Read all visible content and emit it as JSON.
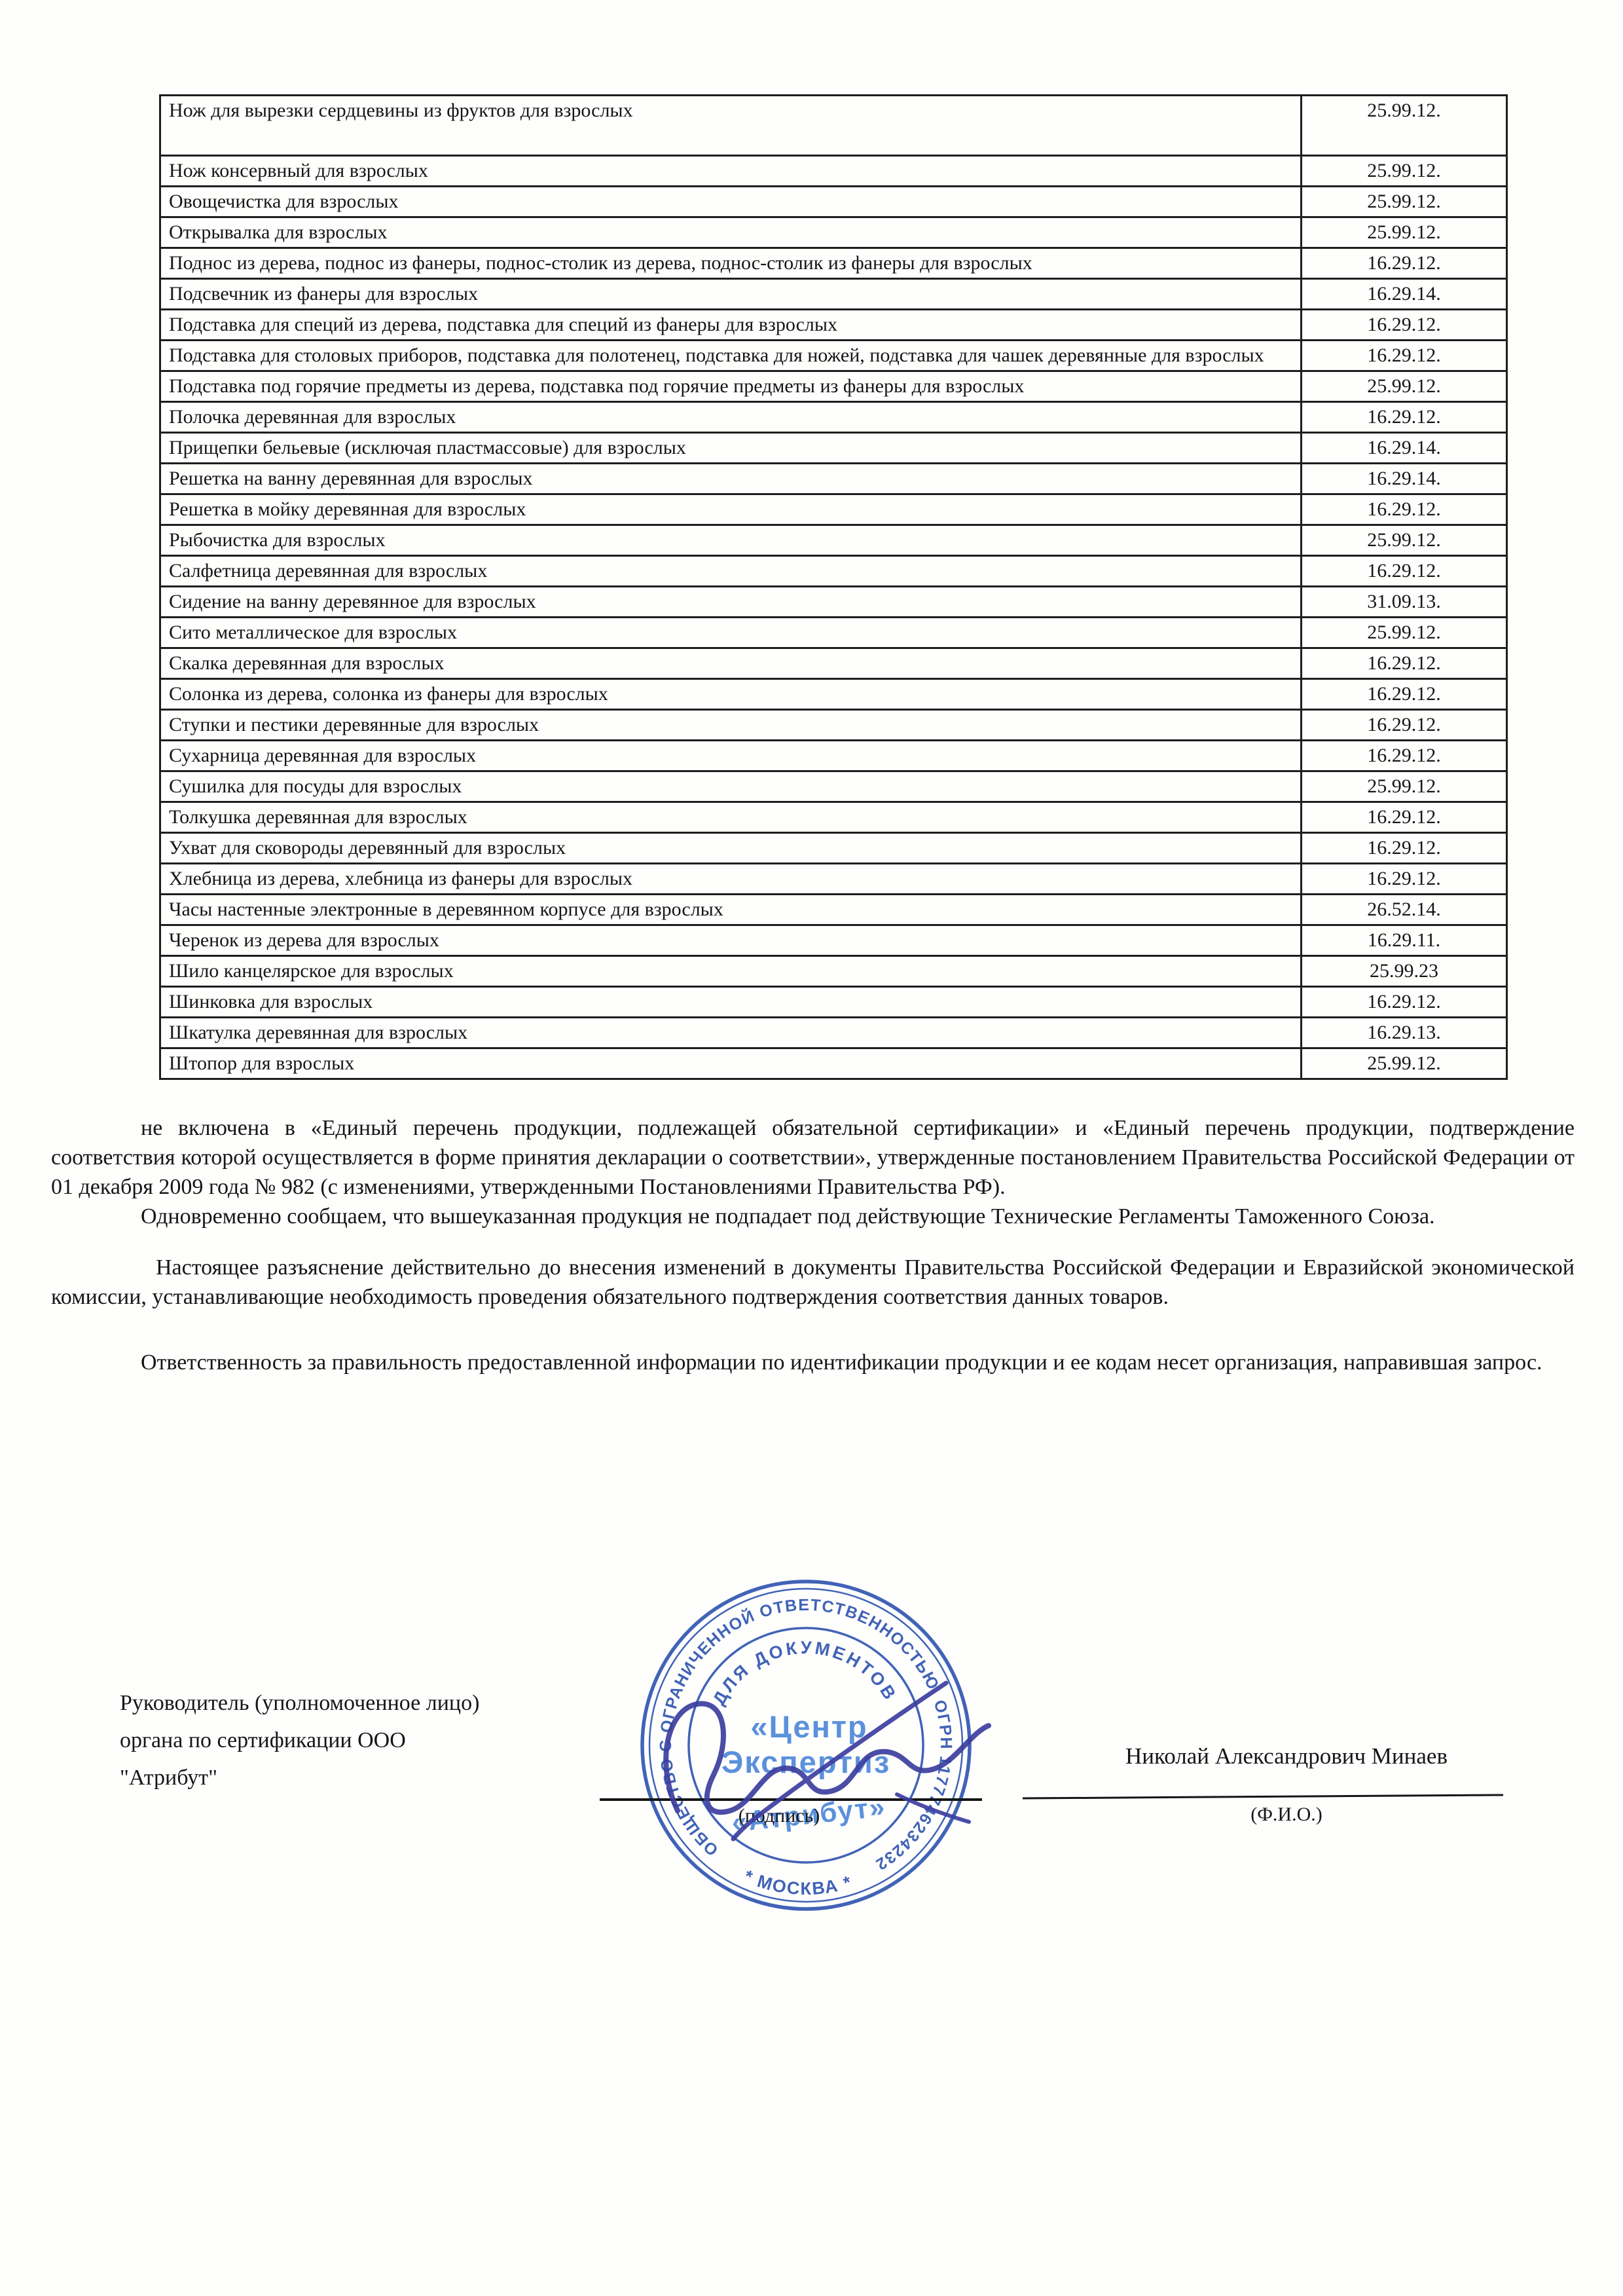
{
  "document": {
    "table": {
      "rows": [
        {
          "name": "Нож для вырезки сердцевины из фруктов для взрослых",
          "code": "25.99.12."
        },
        {
          "name": "Нож консервный для взрослых",
          "code": "25.99.12."
        },
        {
          "name": "Овощечистка для взрослых",
          "code": "25.99.12."
        },
        {
          "name": "Открывалка для взрослых",
          "code": "25.99.12."
        },
        {
          "name": "Поднос из дерева, поднос из фанеры, поднос-столик из дерева, поднос-столик из фанеры для взрослых",
          "code": "16.29.12."
        },
        {
          "name": "Подсвечник из фанеры для взрослых",
          "code": "16.29.14."
        },
        {
          "name": "Подставка для специй из дерева, подставка для специй из фанеры для взрослых",
          "code": "16.29.12."
        },
        {
          "name": "Подставка для столовых приборов, подставка для полотенец, подставка для ножей, подставка для чашек деревянные для взрослых",
          "code": "16.29.12."
        },
        {
          "name": "Подставка под горячие предметы из дерева, подставка под горячие предметы из фанеры для взрослых",
          "code": "25.99.12."
        },
        {
          "name": "Полочка деревянная для взрослых",
          "code": "16.29.12."
        },
        {
          "name": "Прищепки бельевые (исключая пластмассовые) для взрослых",
          "code": "16.29.14."
        },
        {
          "name": "Решетка на ванну деревянная для взрослых",
          "code": "16.29.14."
        },
        {
          "name": "Решетка в мойку деревянная для взрослых",
          "code": "16.29.12."
        },
        {
          "name": "Рыбочистка для взрослых",
          "code": "25.99.12."
        },
        {
          "name": "Салфетница деревянная для взрослых",
          "code": "16.29.12."
        },
        {
          "name": "Сидение на ванну деревянное для взрослых",
          "code": "31.09.13."
        },
        {
          "name": "Сито металлическое для взрослых",
          "code": "25.99.12."
        },
        {
          "name": "Скалка деревянная для взрослых",
          "code": "16.29.12."
        },
        {
          "name": "Солонка из дерева, солонка из фанеры для взрослых",
          "code": "16.29.12."
        },
        {
          "name": "Ступки и пестики деревянные для взрослых",
          "code": "16.29.12."
        },
        {
          "name": "Сухарница деревянная для взрослых",
          "code": "16.29.12."
        },
        {
          "name": "Сушилка для посуды для взрослых",
          "code": "25.99.12."
        },
        {
          "name": "Толкушка деревянная для взрослых",
          "code": "16.29.12."
        },
        {
          "name": "Ухват для сковороды деревянный для взрослых",
          "code": "16.29.12."
        },
        {
          "name": "Хлебница из дерева, хлебница из фанеры для взрослых",
          "code": "16.29.12."
        },
        {
          "name": "Часы настенные электронные в деревянном корпусе для взрослых",
          "code": "26.52.14."
        },
        {
          "name": "Черенок из дерева для взрослых",
          "code": "16.29.11."
        },
        {
          "name": "Шило канцелярское для взрослых",
          "code": "25.99.23"
        },
        {
          "name": "Шинковка для взрослых",
          "code": "16.29.12."
        },
        {
          "name": "Шкатулка деревянная для взрослых",
          "code": "16.29.13."
        },
        {
          "name": "Штопор для взрослых",
          "code": "25.99.12."
        }
      ]
    },
    "paragraphs": [
      "не включена в «Единый перечень продукции, подлежащей обязательной сертификации» и «Единый перечень продукции, подтверждение соответствия которой осуществляется в форме принятия декларации о соответствии», утвержденные постановлением Правительства Российской Федерации от 01 декабря 2009 года № 982 (с изменениями, утвержденными Постановлениями Правительства РФ).",
      "Одновременно сообщаем, что вышеуказанная продукция не подпадает под действующие Технические Регламенты Таможенного Союза.",
      "Настоящее разъяснение действительно до внесения изменений в документы Правительства Российской Федерации и Евразийской экономической комиссии, устанавливающие необходимость проведения обязательного подтверждения соответствия данных товаров.",
      "Ответственность за правильность предоставленной информации по идентификации продукции и ее кодам несет организация, направившая запрос."
    ],
    "signature_block": {
      "left_lines": [
        "Руководитель (уполномоченное лицо)",
        "органа по сертификации ООО",
        "\"Атрибут\""
      ],
      "sign_caption": "(подпись)",
      "fio_caption": "(Ф.И.О.)",
      "signer_name": "Николай Александрович Минаев"
    },
    "stamp": {
      "ring_text": "ОБЩЕСТВО С ОГРАНИЧЕННОЙ ОТВЕТСТВЕННОСТЬЮ  ОГРН 1177746234232",
      "bottom_text": "* МОСКВА *",
      "inner_arc_text": "ДЛЯ ДОКУМЕНТОВ",
      "center_line1": "«Центр",
      "center_line2": "Экспертиз",
      "center_line3": "«Атрибут»",
      "colors": {
        "ring_blue": "#2d53b0",
        "center_blue": "#4a86d8",
        "signature_ink": "#3c3f9f"
      }
    }
  }
}
